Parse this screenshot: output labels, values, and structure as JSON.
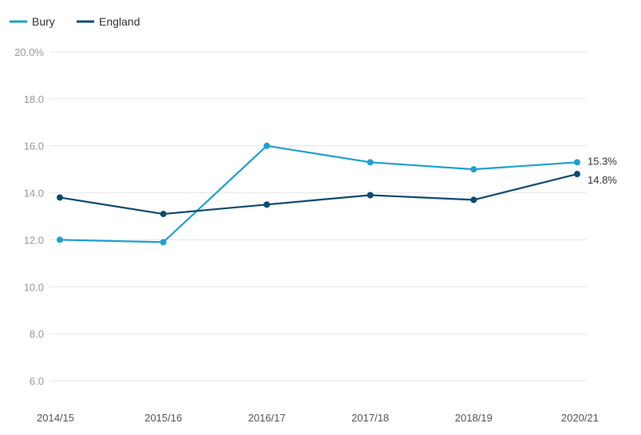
{
  "chart_data": {
    "type": "line",
    "categories": [
      "2014/15",
      "2015/16",
      "2016/17",
      "2017/18",
      "2018/19",
      "2020/21"
    ],
    "series": [
      {
        "name": "Bury",
        "color": "#1ea0d0",
        "values": [
          12.0,
          11.9,
          16.0,
          15.3,
          15.0,
          15.3
        ],
        "end_label": "15.3%"
      },
      {
        "name": "England",
        "color": "#0b4a70",
        "values": [
          13.8,
          13.1,
          13.5,
          13.9,
          13.7,
          14.8
        ],
        "end_label": "14.8%"
      }
    ],
    "y_ticks": [
      "6.0",
      "8.0",
      "10.0",
      "12.0",
      "14.0",
      "16.0",
      "18.0",
      "20.0%"
    ],
    "ylim": [
      5,
      20
    ],
    "grid": true,
    "legend_position": "top-left"
  }
}
